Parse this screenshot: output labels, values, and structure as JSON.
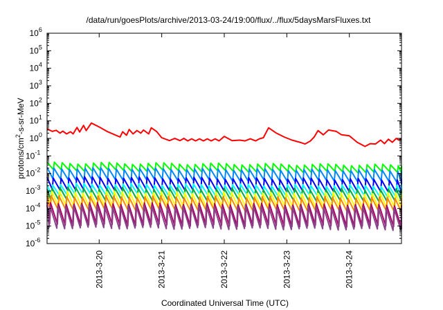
{
  "chart_data": {
    "type": "line",
    "title": "/data/run/goesPlots/archive/2013-03-24/19:00/flux/../flux/5daysMarsFluxes.txt",
    "xlabel": "Coordinated Universal Time (UTC)",
    "ylabel": {
      "base": "protons/cm",
      "sup": "2",
      "rest": "-s-sr-MeV"
    },
    "yscale": "log",
    "ylim_exp": [
      -6,
      6
    ],
    "y_ticks": [
      {
        "base": "10",
        "exp": "-6",
        "value_exp": -6
      },
      {
        "base": "10",
        "exp": "-5",
        "value_exp": -5
      },
      {
        "base": "10",
        "exp": "-4",
        "value_exp": -4
      },
      {
        "base": "10",
        "exp": "-3",
        "value_exp": -3
      },
      {
        "base": "10",
        "exp": "-2",
        "value_exp": -2
      },
      {
        "base": "10",
        "exp": "-1",
        "value_exp": -1
      },
      {
        "base": "10",
        "exp": "0",
        "value_exp": 0
      },
      {
        "base": "10",
        "exp": "1",
        "value_exp": 1
      },
      {
        "base": "10",
        "exp": "2",
        "value_exp": 2
      },
      {
        "base": "10",
        "exp": "3",
        "value_exp": 3
      },
      {
        "base": "10",
        "exp": "4",
        "value_exp": 4
      },
      {
        "base": "10",
        "exp": "5",
        "value_exp": 5
      },
      {
        "base": "10",
        "exp": "6",
        "value_exp": 6
      }
    ],
    "xlim": [
      "2013-03-19T04:00",
      "2013-03-24T20:00"
    ],
    "x_ticks": [
      {
        "label": "2013-3-20",
        "value": "2013-03-20T00:00"
      },
      {
        "label": "2013-3-21",
        "value": "2013-03-21T00:00"
      },
      {
        "label": "2013-3-22",
        "value": "2013-03-22T00:00"
      },
      {
        "label": "2013-3-23",
        "value": "2013-03-23T00:00"
      },
      {
        "label": "2013-3-24",
        "value": "2013-03-24T00:00"
      }
    ],
    "grid": false,
    "legend": "none",
    "series": [
      {
        "color": "#ff0000",
        "x": [
          "2013-03-19T04:00",
          "2013-03-19T06:00",
          "2013-03-19T07:30",
          "2013-03-19T09:00",
          "2013-03-19T10:00",
          "2013-03-19T11:30",
          "2013-03-19T13:00",
          "2013-03-19T14:00",
          "2013-03-19T15:30",
          "2013-03-19T16:30",
          "2013-03-19T18:00",
          "2013-03-19T19:00",
          "2013-03-19T21:00",
          "2013-03-20T00:00",
          "2013-03-20T03:00",
          "2013-03-20T06:00",
          "2013-03-20T08:00",
          "2013-03-20T09:00",
          "2013-03-20T10:30",
          "2013-03-20T11:30",
          "2013-03-20T13:00",
          "2013-03-20T14:30",
          "2013-03-20T16:00",
          "2013-03-20T17:00",
          "2013-03-20T19:00",
          "2013-03-20T20:00",
          "2013-03-20T22:00",
          "2013-03-21T00:00",
          "2013-03-21T03:00",
          "2013-03-21T05:00",
          "2013-03-21T07:00",
          "2013-03-21T08:30",
          "2013-03-21T10:00",
          "2013-03-21T11:30",
          "2013-03-21T13:00",
          "2013-03-21T14:30",
          "2013-03-21T16:00",
          "2013-03-21T17:30",
          "2013-03-21T19:00",
          "2013-03-21T20:30",
          "2013-03-21T22:00",
          "2013-03-22T00:00",
          "2013-03-22T03:00",
          "2013-03-22T06:00",
          "2013-03-22T08:00",
          "2013-03-22T10:00",
          "2013-03-22T12:00",
          "2013-03-22T13:30",
          "2013-03-22T15:00",
          "2013-03-22T17:00",
          "2013-03-22T20:00",
          "2013-03-22T23:00",
          "2013-03-23T02:00",
          "2013-03-23T05:00",
          "2013-03-23T07:00",
          "2013-03-23T09:00",
          "2013-03-23T10:30",
          "2013-03-23T12:00",
          "2013-03-23T14:00",
          "2013-03-23T16:00",
          "2013-03-23T19:00",
          "2013-03-23T21:00",
          "2013-03-24T00:00",
          "2013-03-24T03:00",
          "2013-03-24T06:00",
          "2013-03-24T08:00",
          "2013-03-24T10:00",
          "2013-03-24T12:00",
          "2013-03-24T13:30",
          "2013-03-24T15:00",
          "2013-03-24T16:30",
          "2013-03-24T18:00",
          "2013-03-24T19:00",
          "2013-03-24T20:00"
        ],
        "y": [
          3.5,
          2.5,
          2.9,
          2.0,
          2.6,
          1.8,
          2.4,
          1.8,
          4.2,
          2.3,
          5.5,
          2.8,
          7.5,
          4.5,
          2.5,
          1.6,
          1.2,
          2.4,
          1.5,
          3.2,
          1.8,
          2.8,
          2.0,
          3.0,
          1.8,
          4.0,
          2.5,
          1.1,
          0.75,
          1.0,
          0.75,
          1.0,
          0.72,
          0.95,
          0.72,
          0.95,
          0.72,
          0.95,
          0.72,
          0.95,
          0.72,
          1.3,
          0.75,
          0.8,
          0.72,
          0.95,
          0.72,
          0.95,
          1.1,
          4.0,
          2.0,
          1.2,
          0.8,
          0.6,
          0.48,
          0.7,
          1.2,
          2.8,
          1.6,
          3.0,
          2.5,
          1.6,
          1.4,
          0.6,
          0.35,
          0.5,
          0.48,
          0.8,
          0.5,
          0.9,
          0.6,
          1.0,
          0.8,
          1.0
        ]
      },
      {
        "color": "#00ff00",
        "baseline": 0.015,
        "peak": 0.04,
        "end_factor": 0.75
      },
      {
        "color": "#0088ff",
        "baseline": 0.0045,
        "peak": 0.02,
        "end_factor": 0.75
      },
      {
        "color": "#0000ff",
        "baseline": 0.0012,
        "peak": 0.006,
        "end_factor": 0.75
      },
      {
        "color": "#00ffff",
        "baseline": 0.0006,
        "peak": 0.0025,
        "end_factor": 0.8
      },
      {
        "color": "#00aa44",
        "baseline": 0.0003,
        "peak": 0.0015,
        "end_factor": 0.8
      },
      {
        "color": "#ffff00",
        "baseline": 0.00012,
        "peak": 0.0009,
        "end_factor": 0.8
      },
      {
        "color": "#ff8800",
        "baseline": 8e-05,
        "peak": 0.0005,
        "end_factor": 0.8
      },
      {
        "color": "#aa0066",
        "baseline": 1.2e-05,
        "peak": 0.0002,
        "end_factor": 0.8
      },
      {
        "color": "#884488",
        "baseline": 8e-06,
        "peak": 0.00015,
        "end_factor": 0.8
      }
    ]
  }
}
